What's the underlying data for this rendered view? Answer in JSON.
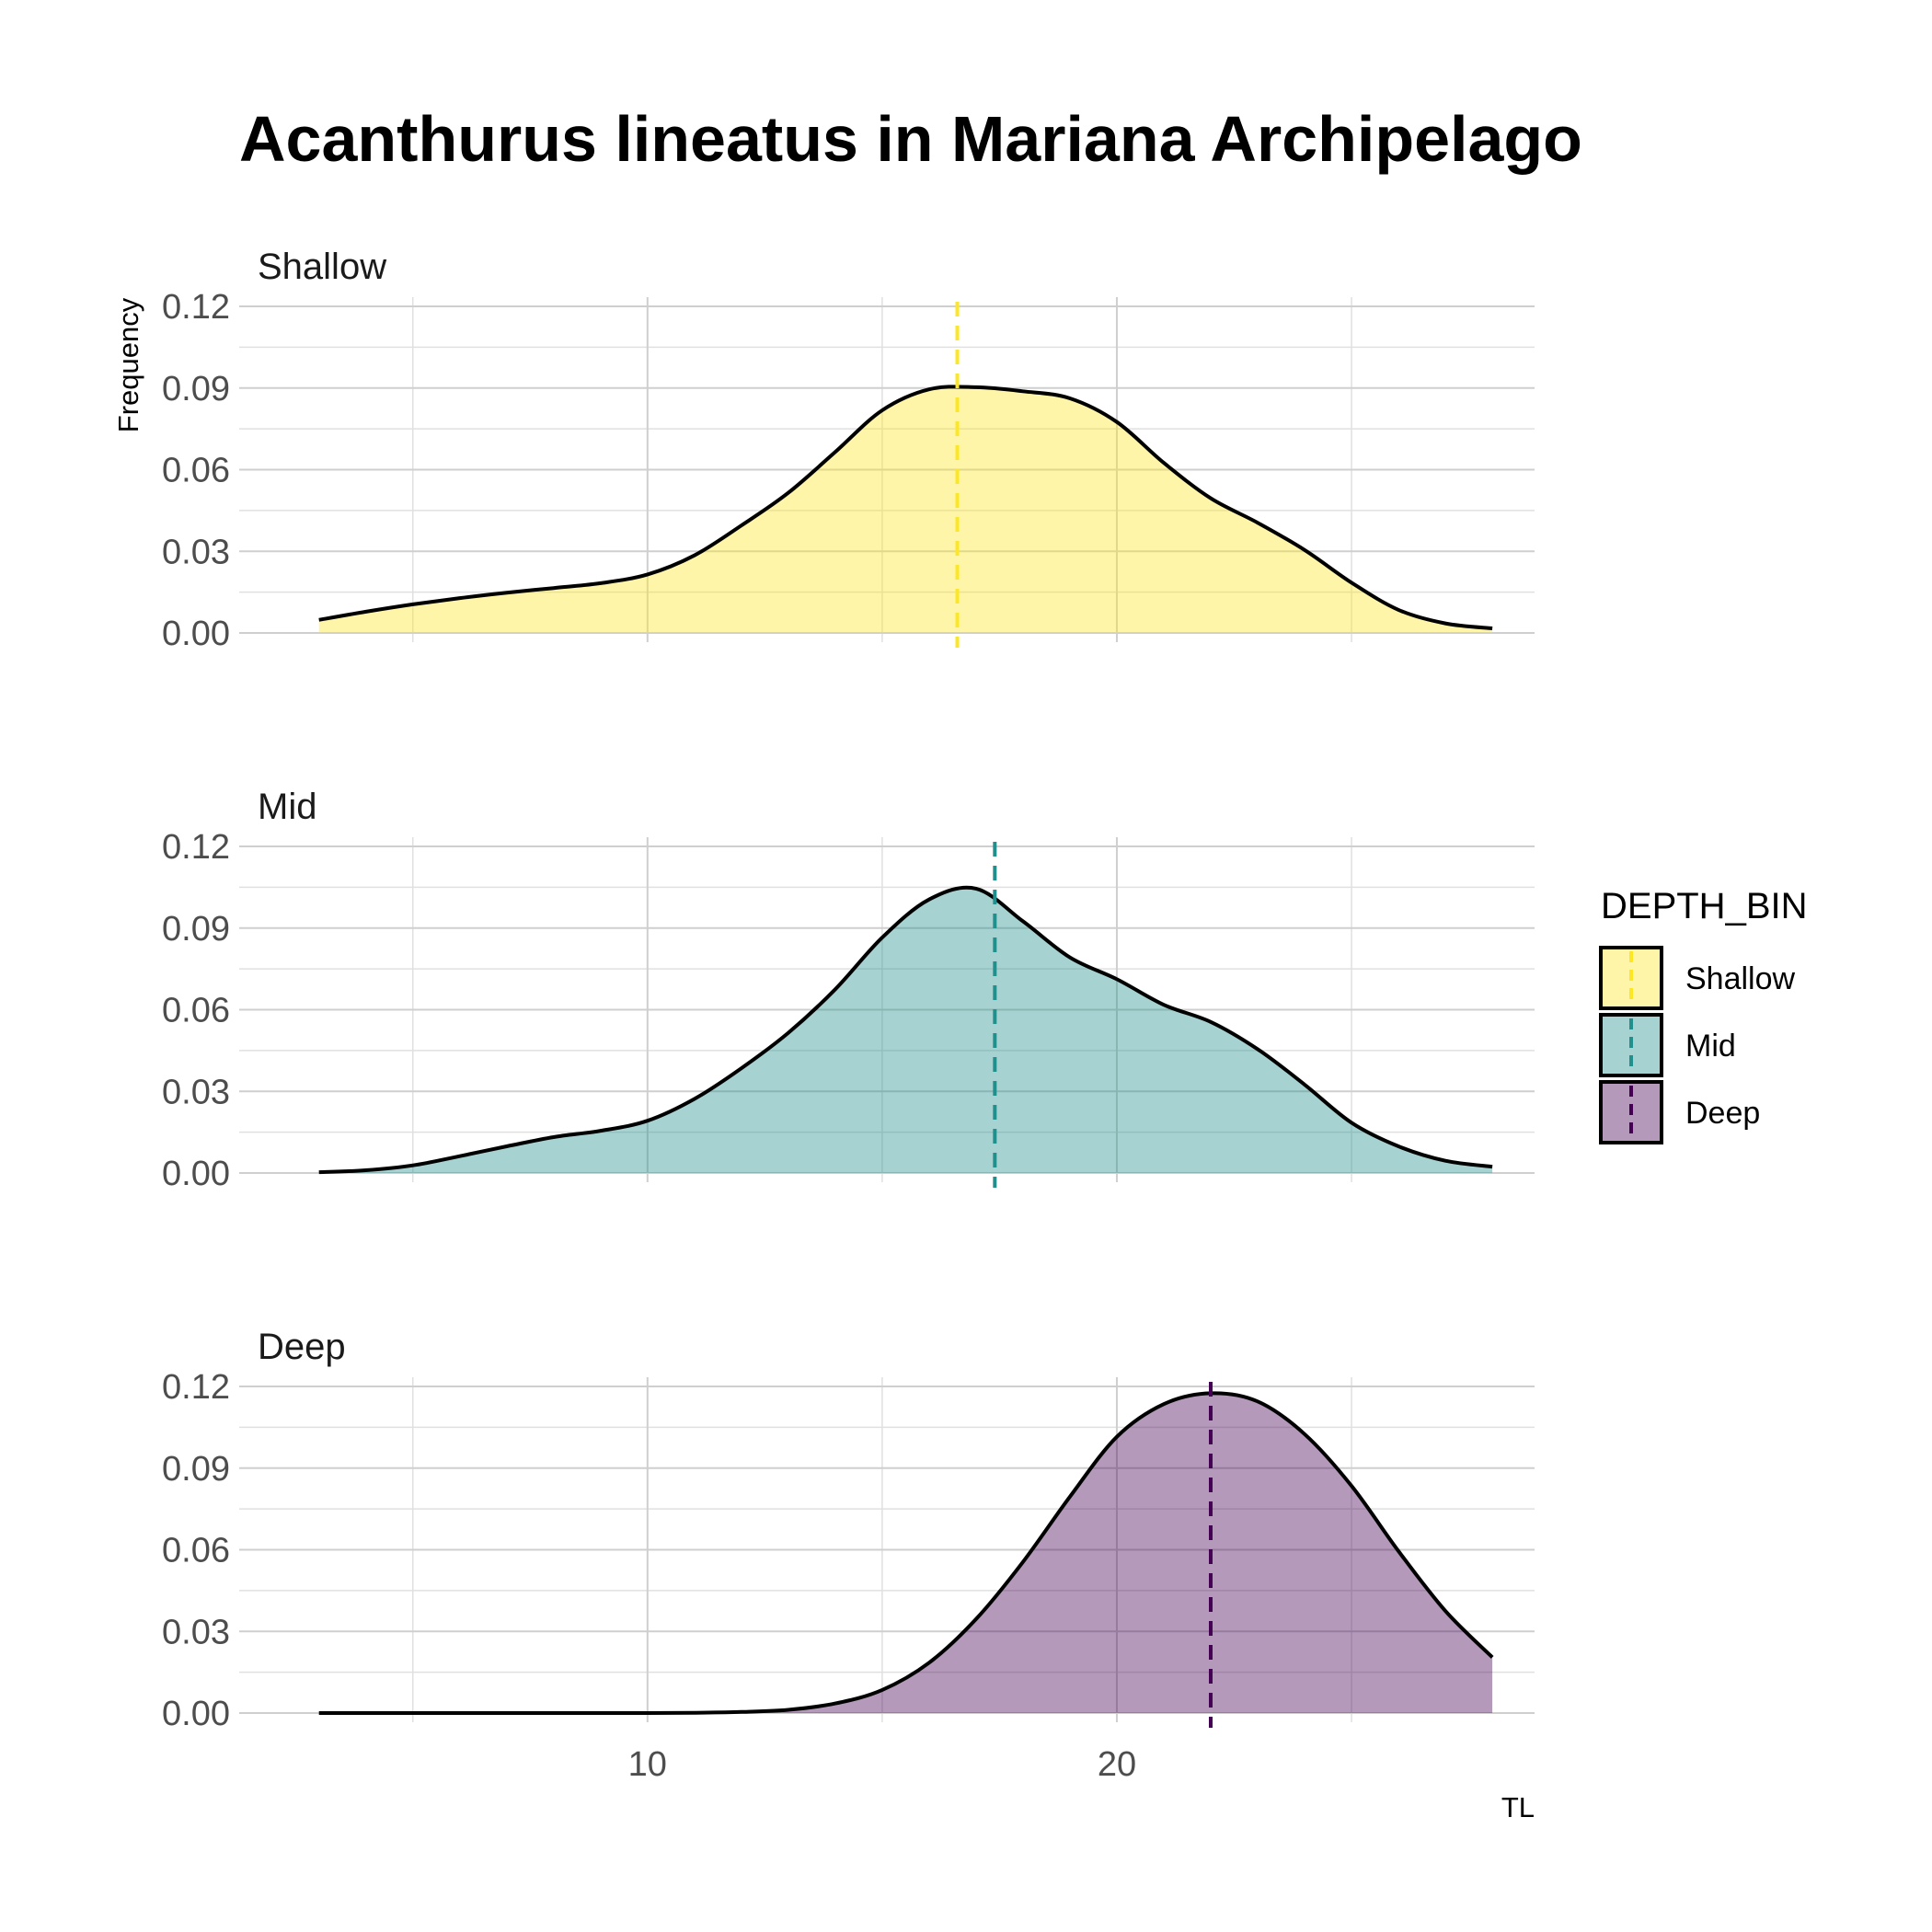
{
  "chart_data": {
    "type": "area",
    "title": "Acanthurus lineatus in Mariana Archipelago",
    "xlabel": "TL",
    "ylabel": "Frequency",
    "xlim": [
      1.3,
      28.9
    ],
    "ylim": [
      0,
      0.12
    ],
    "x_ticks": [
      10,
      20
    ],
    "y_ticks": [
      0,
      0.03,
      0.06,
      0.09,
      0.12
    ],
    "y_tick_labels": [
      "0.00",
      "0.03",
      "0.06",
      "0.09",
      "0.12"
    ],
    "grid": true,
    "legend_title": "DEPTH_BIN",
    "legend_position": "right",
    "series": [
      {
        "name": "Shallow",
        "color": "#fde725",
        "mean": 16.6,
        "x": [
          3,
          4,
          5,
          6,
          7,
          8,
          9,
          10,
          11,
          12,
          13,
          14,
          15,
          16,
          17,
          18,
          19,
          20,
          21,
          22,
          23,
          24,
          25,
          26,
          27,
          28
        ],
        "y": [
          0.0048,
          0.0078,
          0.0105,
          0.0128,
          0.0148,
          0.0165,
          0.0183,
          0.0215,
          0.0285,
          0.0395,
          0.0515,
          0.0665,
          0.0818,
          0.0895,
          0.0903,
          0.0888,
          0.0862,
          0.0775,
          0.0625,
          0.0495,
          0.0405,
          0.0305,
          0.0185,
          0.0085,
          0.0035,
          0.0017
        ]
      },
      {
        "name": "Mid",
        "color": "#21908c",
        "mean": 17.4,
        "x": [
          3,
          4,
          5,
          6,
          7,
          8,
          9,
          10,
          11,
          12,
          13,
          14,
          15,
          16,
          17,
          18,
          19,
          20,
          21,
          22,
          23,
          24,
          25,
          26,
          27,
          28
        ],
        "y": [
          0.0003,
          0.001,
          0.0028,
          0.0062,
          0.0098,
          0.0132,
          0.0155,
          0.0192,
          0.0272,
          0.0385,
          0.0515,
          0.0675,
          0.0865,
          0.1005,
          0.1045,
          0.0925,
          0.0792,
          0.0712,
          0.0618,
          0.0555,
          0.0455,
          0.0325,
          0.0185,
          0.0098,
          0.0045,
          0.0023
        ]
      },
      {
        "name": "Deep",
        "color": "#440154",
        "mean": 22,
        "x": [
          3,
          4,
          5,
          6,
          7,
          8,
          9,
          10,
          11,
          12,
          13,
          14,
          15,
          16,
          17,
          18,
          19,
          20,
          21,
          22,
          23,
          24,
          25,
          26,
          27,
          28
        ],
        "y": [
          0,
          0,
          0,
          0,
          0,
          0,
          0,
          0,
          0.0001,
          0.0004,
          0.0012,
          0.0035,
          0.0085,
          0.0185,
          0.0345,
          0.0555,
          0.0795,
          0.1015,
          0.1135,
          0.1175,
          0.1145,
          0.1025,
          0.0835,
          0.0595,
          0.0375,
          0.0205
        ]
      }
    ]
  }
}
